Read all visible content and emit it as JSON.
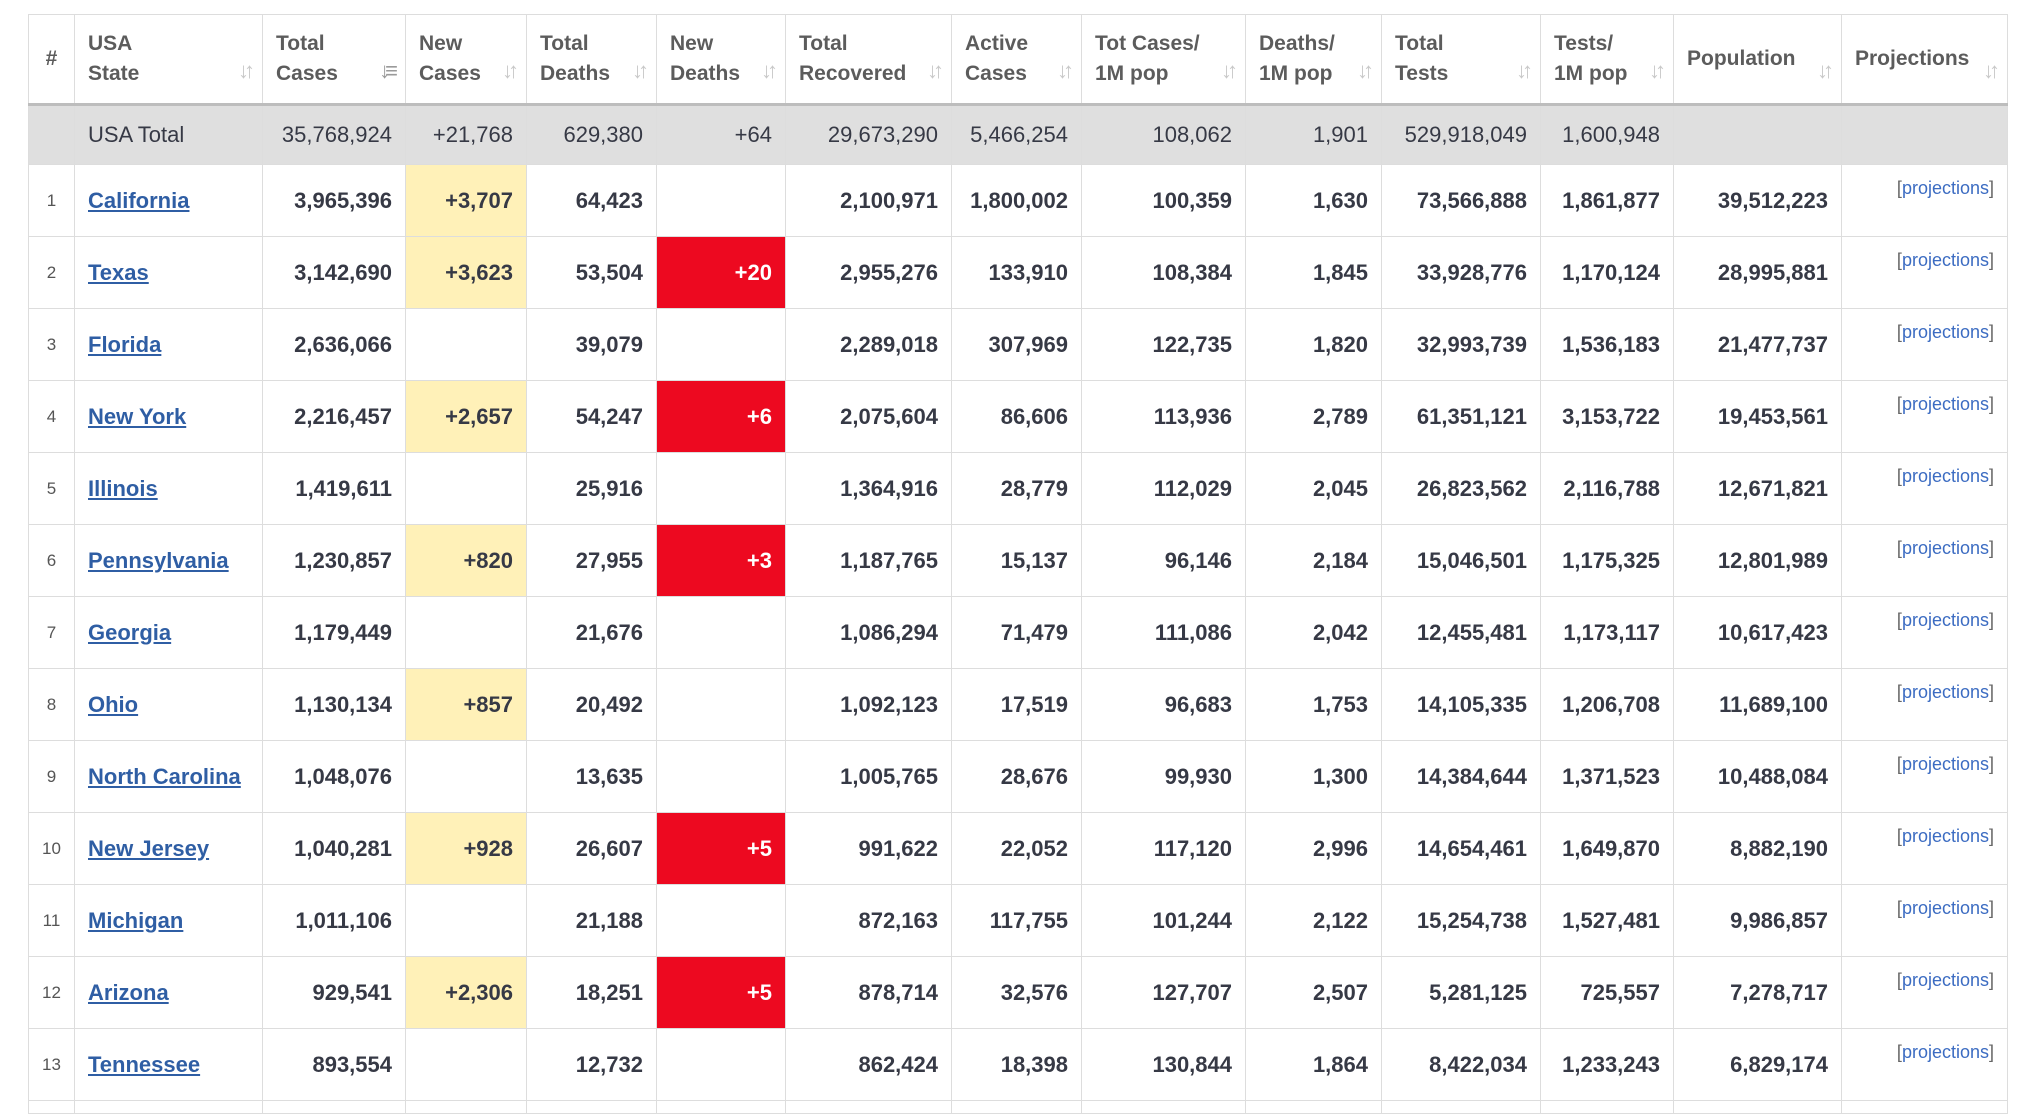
{
  "headers": [
    {
      "key": "num",
      "label": "#"
    },
    {
      "key": "state",
      "label": "USA State"
    },
    {
      "key": "total_cases",
      "label": "Total Cases"
    },
    {
      "key": "new_cases",
      "label": "New Cases"
    },
    {
      "key": "total_deaths",
      "label": "Total Deaths"
    },
    {
      "key": "new_deaths",
      "label": "New Deaths"
    },
    {
      "key": "total_recovered",
      "label": "Total Recovered"
    },
    {
      "key": "active_cases",
      "label": "Active Cases"
    },
    {
      "key": "cases_per_1m",
      "label": "Tot Cases/ 1M pop"
    },
    {
      "key": "deaths_per_1m",
      "label": "Deaths/ 1M pop"
    },
    {
      "key": "total_tests",
      "label": "Total Tests"
    },
    {
      "key": "tests_per_1m",
      "label": "Tests/ 1M pop"
    },
    {
      "key": "population",
      "label": "Population"
    },
    {
      "key": "projections",
      "label": "Projections"
    }
  ],
  "total_row": {
    "state": "USA Total",
    "total_cases": "35,768,924",
    "new_cases": "+21,768",
    "total_deaths": "629,380",
    "new_deaths": "+64",
    "total_recovered": "29,673,290",
    "active_cases": "5,466,254",
    "cases_per_1m": "108,062",
    "deaths_per_1m": "1,901",
    "total_tests": "529,918,049",
    "tests_per_1m": "1,600,948",
    "population": ""
  },
  "rows": [
    {
      "num": "1",
      "state": "California",
      "total_cases": "3,965,396",
      "new_cases": "+3,707",
      "total_deaths": "64,423",
      "new_deaths": "",
      "total_recovered": "2,100,971",
      "active_cases": "1,800,002",
      "cases_per_1m": "100,359",
      "deaths_per_1m": "1,630",
      "total_tests": "73,566,888",
      "tests_per_1m": "1,861,877",
      "population": "39,512,223",
      "projections": "projections"
    },
    {
      "num": "2",
      "state": "Texas",
      "total_cases": "3,142,690",
      "new_cases": "+3,623",
      "total_deaths": "53,504",
      "new_deaths": "+20",
      "total_recovered": "2,955,276",
      "active_cases": "133,910",
      "cases_per_1m": "108,384",
      "deaths_per_1m": "1,845",
      "total_tests": "33,928,776",
      "tests_per_1m": "1,170,124",
      "population": "28,995,881",
      "projections": "projections"
    },
    {
      "num": "3",
      "state": "Florida",
      "total_cases": "2,636,066",
      "new_cases": "",
      "total_deaths": "39,079",
      "new_deaths": "",
      "total_recovered": "2,289,018",
      "active_cases": "307,969",
      "cases_per_1m": "122,735",
      "deaths_per_1m": "1,820",
      "total_tests": "32,993,739",
      "tests_per_1m": "1,536,183",
      "population": "21,477,737",
      "projections": "projections"
    },
    {
      "num": "4",
      "state": "New York",
      "total_cases": "2,216,457",
      "new_cases": "+2,657",
      "total_deaths": "54,247",
      "new_deaths": "+6",
      "total_recovered": "2,075,604",
      "active_cases": "86,606",
      "cases_per_1m": "113,936",
      "deaths_per_1m": "2,789",
      "total_tests": "61,351,121",
      "tests_per_1m": "3,153,722",
      "population": "19,453,561",
      "projections": "projections"
    },
    {
      "num": "5",
      "state": "Illinois",
      "total_cases": "1,419,611",
      "new_cases": "",
      "total_deaths": "25,916",
      "new_deaths": "",
      "total_recovered": "1,364,916",
      "active_cases": "28,779",
      "cases_per_1m": "112,029",
      "deaths_per_1m": "2,045",
      "total_tests": "26,823,562",
      "tests_per_1m": "2,116,788",
      "population": "12,671,821",
      "projections": "projections"
    },
    {
      "num": "6",
      "state": "Pennsylvania",
      "total_cases": "1,230,857",
      "new_cases": "+820",
      "total_deaths": "27,955",
      "new_deaths": "+3",
      "total_recovered": "1,187,765",
      "active_cases": "15,137",
      "cases_per_1m": "96,146",
      "deaths_per_1m": "2,184",
      "total_tests": "15,046,501",
      "tests_per_1m": "1,175,325",
      "population": "12,801,989",
      "projections": "projections"
    },
    {
      "num": "7",
      "state": "Georgia",
      "total_cases": "1,179,449",
      "new_cases": "",
      "total_deaths": "21,676",
      "new_deaths": "",
      "total_recovered": "1,086,294",
      "active_cases": "71,479",
      "cases_per_1m": "111,086",
      "deaths_per_1m": "2,042",
      "total_tests": "12,455,481",
      "tests_per_1m": "1,173,117",
      "population": "10,617,423",
      "projections": "projections"
    },
    {
      "num": "8",
      "state": "Ohio",
      "total_cases": "1,130,134",
      "new_cases": "+857",
      "total_deaths": "20,492",
      "new_deaths": "",
      "total_recovered": "1,092,123",
      "active_cases": "17,519",
      "cases_per_1m": "96,683",
      "deaths_per_1m": "1,753",
      "total_tests": "14,105,335",
      "tests_per_1m": "1,206,708",
      "population": "11,689,100",
      "projections": "projections"
    },
    {
      "num": "9",
      "state": "North Carolina",
      "total_cases": "1,048,076",
      "new_cases": "",
      "total_deaths": "13,635",
      "new_deaths": "",
      "total_recovered": "1,005,765",
      "active_cases": "28,676",
      "cases_per_1m": "99,930",
      "deaths_per_1m": "1,300",
      "total_tests": "14,384,644",
      "tests_per_1m": "1,371,523",
      "population": "10,488,084",
      "projections": "projections"
    },
    {
      "num": "10",
      "state": "New Jersey",
      "total_cases": "1,040,281",
      "new_cases": "+928",
      "total_deaths": "26,607",
      "new_deaths": "+5",
      "total_recovered": "991,622",
      "active_cases": "22,052",
      "cases_per_1m": "117,120",
      "deaths_per_1m": "2,996",
      "total_tests": "14,654,461",
      "tests_per_1m": "1,649,870",
      "population": "8,882,190",
      "projections": "projections"
    },
    {
      "num": "11",
      "state": "Michigan",
      "total_cases": "1,011,106",
      "new_cases": "",
      "total_deaths": "21,188",
      "new_deaths": "",
      "total_recovered": "872,163",
      "active_cases": "117,755",
      "cases_per_1m": "101,244",
      "deaths_per_1m": "2,122",
      "total_tests": "15,254,738",
      "tests_per_1m": "1,527,481",
      "population": "9,986,857",
      "projections": "projections"
    },
    {
      "num": "12",
      "state": "Arizona",
      "total_cases": "929,541",
      "new_cases": "+2,306",
      "total_deaths": "18,251",
      "new_deaths": "+5",
      "total_recovered": "878,714",
      "active_cases": "32,576",
      "cases_per_1m": "127,707",
      "deaths_per_1m": "2,507",
      "total_tests": "5,281,125",
      "tests_per_1m": "725,557",
      "population": "7,278,717",
      "projections": "projections"
    },
    {
      "num": "13",
      "state": "Tennessee",
      "total_cases": "893,554",
      "new_cases": "",
      "total_deaths": "12,732",
      "new_deaths": "",
      "total_recovered": "862,424",
      "active_cases": "18,398",
      "cases_per_1m": "130,844",
      "deaths_per_1m": "1,864",
      "total_tests": "8,422,034",
      "tests_per_1m": "1,233,243",
      "population": "6,829,174",
      "projections": "projections"
    }
  ],
  "colors": {
    "new_cases_highlight": "#fff1b8",
    "new_deaths_highlight": "#ed0920",
    "total_row_bg": "#dfdfdf",
    "link": "#2f5ea4"
  },
  "icons": {
    "sort": "sort-arrows-icon",
    "sort_active": "sort-descending-icon"
  }
}
